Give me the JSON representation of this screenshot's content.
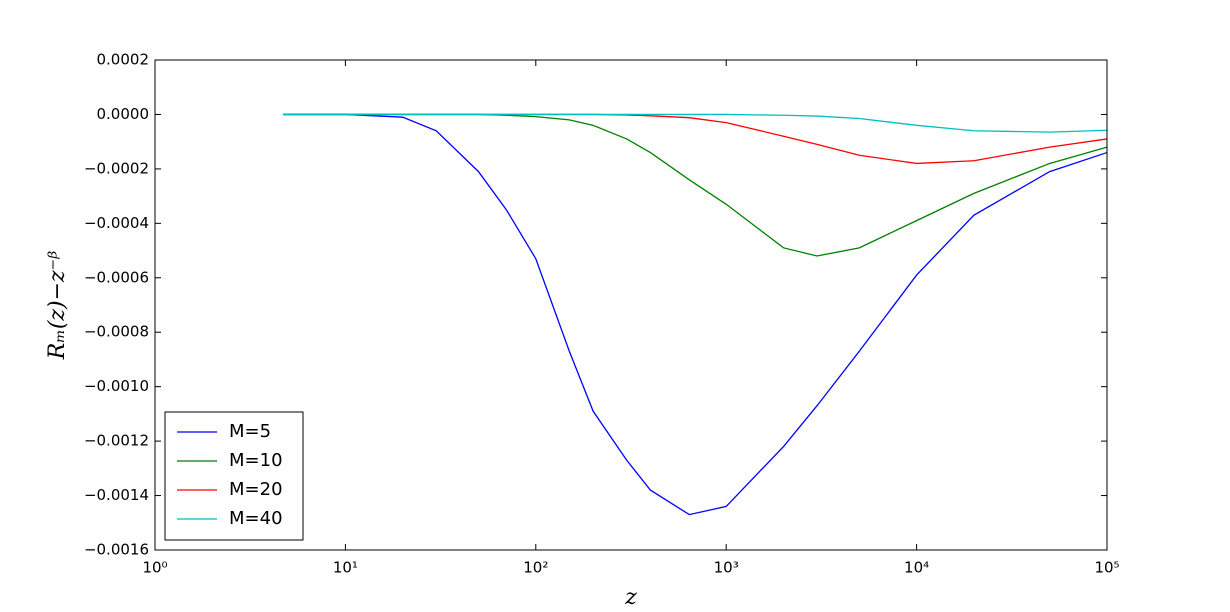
{
  "chart_data": {
    "type": "line",
    "xlabel": "z",
    "ylabel": "Rₘ(z)−z⁻ᵝ",
    "xscale": "log",
    "x": [
      4.7,
      10,
      20,
      30,
      50,
      70,
      100,
      150,
      200,
      300,
      400,
      640,
      1000,
      2000,
      3000,
      5000,
      10000,
      20000,
      50000,
      100000
    ],
    "series": [
      {
        "name": "M=5",
        "color": "#0000ff",
        "values": [
          0,
          0,
          -1e-05,
          -6e-05,
          -0.00021,
          -0.00035,
          -0.00053,
          -0.00087,
          -0.00109,
          -0.00127,
          -0.00138,
          -0.00147,
          -0.00144,
          -0.00122,
          -0.00107,
          -0.00087,
          -0.00059,
          -0.00037,
          -0.00021,
          -0.00014
        ]
      },
      {
        "name": "M=10",
        "color": "#008000",
        "values": [
          0,
          0,
          0,
          0,
          0,
          -3e-06,
          -8e-06,
          -2e-05,
          -4e-05,
          -9e-05,
          -0.00014,
          -0.00024,
          -0.00033,
          -0.00049,
          -0.00052,
          -0.00049,
          -0.00039,
          -0.00029,
          -0.00018,
          -0.00012
        ]
      },
      {
        "name": "M=20",
        "color": "#ff0000",
        "values": [
          0,
          0,
          0,
          0,
          0,
          0,
          0,
          0,
          0,
          -2e-06,
          -5e-06,
          -1.2e-05,
          -3e-05,
          -8e-05,
          -0.00011,
          -0.00015,
          -0.00018,
          -0.00017,
          -0.00012,
          -9e-05
        ]
      },
      {
        "name": "M=40",
        "color": "#00bfbf",
        "values": [
          0,
          0,
          0,
          0,
          0,
          0,
          0,
          0,
          0,
          0,
          0,
          0,
          0,
          -3e-06,
          -6e-06,
          -1.5e-05,
          -4e-05,
          -6e-05,
          -6.5e-05,
          -5.8e-05
        ]
      }
    ],
    "xlim": [
      1,
      100000
    ],
    "xticks": [
      {
        "value": 1,
        "label": "10⁰"
      },
      {
        "value": 10,
        "label": "10¹"
      },
      {
        "value": 100,
        "label": "10²"
      },
      {
        "value": 1000,
        "label": "10³"
      },
      {
        "value": 10000,
        "label": "10⁴"
      },
      {
        "value": 100000,
        "label": "10⁵"
      }
    ],
    "ylim": [
      -0.0016,
      0.0002
    ],
    "yticks": [
      {
        "value": 0.0002,
        "label": "0.0002"
      },
      {
        "value": 0,
        "label": "0.0000"
      },
      {
        "value": -0.0002,
        "label": "−0.0002"
      },
      {
        "value": -0.0004,
        "label": "−0.0004"
      },
      {
        "value": -0.0006,
        "label": "−0.0006"
      },
      {
        "value": -0.0008,
        "label": "−0.0008"
      },
      {
        "value": -0.001,
        "label": "−0.0010"
      },
      {
        "value": -0.0012,
        "label": "−0.0012"
      },
      {
        "value": -0.0014,
        "label": "−0.0014"
      },
      {
        "value": -0.0016,
        "label": "−0.0016"
      }
    ],
    "legend": "lower left"
  }
}
